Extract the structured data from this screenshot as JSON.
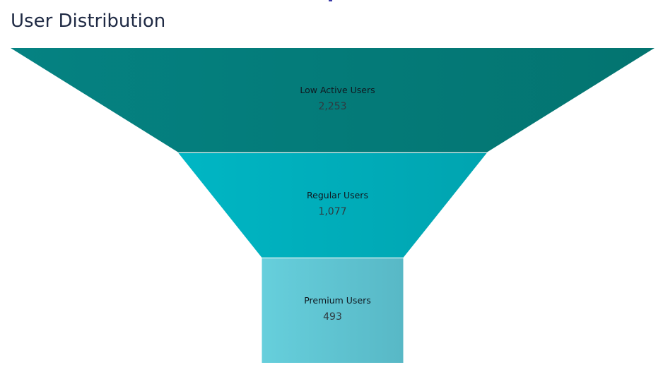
{
  "title": "User Distribution",
  "colors": {
    "title": "#1f2a44",
    "stage_gradients": [
      [
        "#058282",
        "#037470"
      ],
      [
        "#00b6c4",
        "#00a4b0"
      ],
      [
        "#66cfdc",
        "#58b8c6"
      ]
    ],
    "separator": "#e6f4f4"
  },
  "chart_data": {
    "type": "funnel",
    "title": "User Distribution",
    "stages": [
      {
        "label": "Low Active Users",
        "value": 2253,
        "display": "2,253"
      },
      {
        "label": "Regular Users",
        "value": 1077,
        "display": "1,077"
      },
      {
        "label": "Premium Users",
        "value": 493,
        "display": "493"
      }
    ]
  }
}
